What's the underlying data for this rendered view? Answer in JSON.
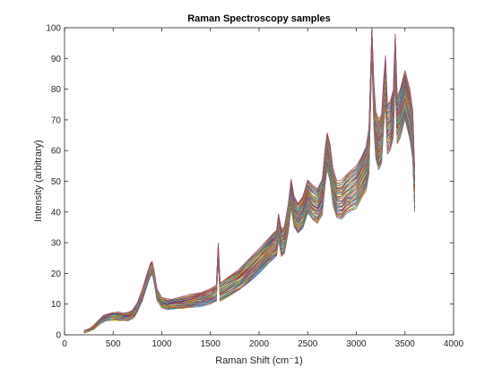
{
  "chart_data": {
    "type": "line",
    "title": "Raman Spectroscopy samples",
    "xlabel": "Raman Shift (cm⁻1)",
    "ylabel": "Intensity (arbitrary)",
    "xlim": [
      0,
      4000
    ],
    "ylim": [
      0,
      100
    ],
    "xticks": [
      "0",
      "500",
      "1000",
      "1500",
      "2000",
      "2500",
      "3000",
      "3500",
      "4000"
    ],
    "yticks": [
      "0",
      "10",
      "20",
      "30",
      "40",
      "50",
      "60",
      "70",
      "80",
      "90",
      "100"
    ],
    "grid": false,
    "legend": "none",
    "series_count": 60,
    "colors": [
      "#0072bd",
      "#d95319",
      "#edb120",
      "#7e2f8e",
      "#77ac30",
      "#4dbeee",
      "#a2142f"
    ],
    "x": [
      200,
      250,
      300,
      350,
      400,
      450,
      500,
      550,
      600,
      650,
      700,
      720,
      750,
      800,
      850,
      880,
      900,
      920,
      950,
      1000,
      1050,
      1100,
      1200,
      1300,
      1400,
      1500,
      1560,
      1580,
      1600,
      1700,
      1800,
      1900,
      2000,
      2100,
      2150,
      2180,
      2200,
      2230,
      2260,
      2300,
      2330,
      2360,
      2400,
      2450,
      2500,
      2550,
      2600,
      2650,
      2680,
      2700,
      2730,
      2760,
      2800,
      2850,
      2900,
      2950,
      3000,
      3050,
      3100,
      3130,
      3160,
      3180,
      3200,
      3230,
      3260,
      3280,
      3300,
      3320,
      3350,
      3380,
      3400,
      3420,
      3450,
      3500,
      3550,
      3580,
      3600
    ],
    "mean_spectrum": [
      1,
      1.5,
      2.5,
      4,
      5.2,
      5.8,
      6,
      6,
      5.9,
      6,
      6.5,
      7.5,
      9,
      13,
      18,
      21,
      22,
      19,
      13,
      10.5,
      10,
      10,
      10.3,
      11,
      11.5,
      12.5,
      13.5,
      27,
      14,
      16,
      18,
      21,
      24,
      27.5,
      29,
      30,
      35,
      30,
      31,
      38,
      46,
      40,
      38,
      40,
      45,
      43,
      42,
      45,
      55,
      60,
      56,
      48,
      44,
      44,
      46,
      47,
      48,
      51,
      54,
      60,
      99,
      75,
      65,
      62,
      64,
      75,
      83,
      67,
      68,
      72,
      90,
      70,
      72,
      78,
      72,
      65,
      47
    ],
    "spread": [
      0.3,
      0.4,
      0.6,
      0.8,
      1,
      1.1,
      1.2,
      1.2,
      1.2,
      1.3,
      1.4,
      1.5,
      1.6,
      1.8,
      2,
      2,
      2,
      2,
      1.8,
      1.6,
      1.6,
      1.6,
      1.8,
      2,
      2.2,
      2.4,
      2.6,
      2.8,
      3,
      3.2,
      3.4,
      3.6,
      3.8,
      4,
      4.2,
      4.2,
      4.4,
      4.4,
      4.5,
      4.6,
      4.8,
      5,
      5,
      5.2,
      5.4,
      5.5,
      5.6,
      5.8,
      6,
      6,
      6,
      6,
      6,
      6.2,
      6.4,
      6.6,
      6.8,
      7,
      7.2,
      7.4,
      7.6,
      7.6,
      7.8,
      8,
      8,
      8,
      8,
      8,
      8,
      8,
      8,
      8,
      8,
      8,
      8,
      8,
      7
    ]
  }
}
